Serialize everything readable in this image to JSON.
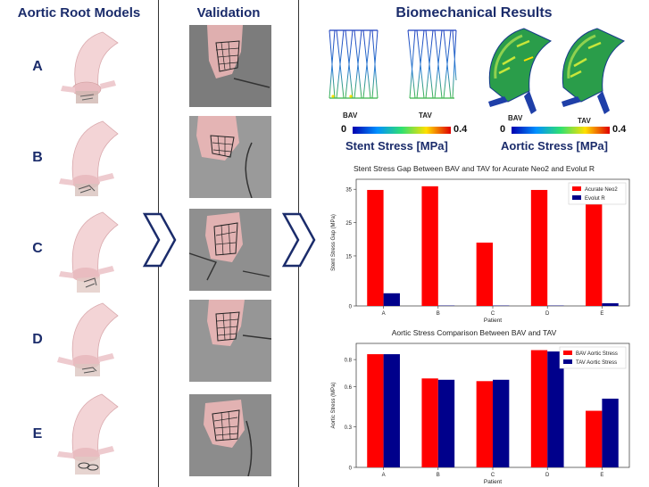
{
  "panels": {
    "models_title": "Aortic Root Models",
    "validation_title": "Validation",
    "results_title": "Biomechanical Results"
  },
  "rows": [
    "A",
    "B",
    "C",
    "D",
    "E"
  ],
  "renders": {
    "stent_bav": "BAV",
    "stent_tav": "TAV",
    "aorta_bav": "BAV",
    "aorta_tav": "TAV"
  },
  "colorbars": {
    "stent": {
      "min": "0",
      "max": "0.4",
      "title": "Stent Stress [MPa]"
    },
    "aortic": {
      "min": "0",
      "max": "0.4",
      "title": "Aortic Stress [MPa]"
    }
  },
  "colors": {
    "title_blue": "#1b2c6b",
    "bar_red": "#ff0000",
    "bar_navy": "#00008b",
    "tissue_pink": "#f4c9c9",
    "chevron": "#1b2c6b"
  },
  "chart_data": [
    {
      "type": "bar",
      "title": "Stent Stress Gap Between BAV and TAV for Acurate Neo2 and Evolut R",
      "xlabel": "Patient",
      "ylabel": "Stent Stress Gap (MPa)",
      "categories": [
        "A",
        "B",
        "C",
        "D",
        "E"
      ],
      "yticks": [
        0,
        15,
        25,
        35
      ],
      "ylim": [
        0,
        38
      ],
      "legend": "top-right",
      "series": [
        {
          "name": "Acurate Neo2",
          "values": [
            34.8,
            35.9,
            19.0,
            34.8,
            34.0
          ]
        },
        {
          "name": "Evolut R",
          "values": [
            3.8,
            0.1,
            0.1,
            0.1,
            0.8
          ]
        }
      ]
    },
    {
      "type": "bar",
      "title": "Aortic Stress Comparison Between BAV and TAV",
      "xlabel": "Patient",
      "ylabel": "Aortic Stress (MPa)",
      "categories": [
        "A",
        "B",
        "C",
        "D",
        "E"
      ],
      "yticks": [
        0,
        0.3,
        0.6,
        0.8
      ],
      "ylim": [
        0,
        0.92
      ],
      "legend": "top-right",
      "series": [
        {
          "name": "BAV Aortic Stress",
          "values": [
            0.84,
            0.66,
            0.64,
            0.87,
            0.42
          ]
        },
        {
          "name": "TAV Aortic Stress",
          "values": [
            0.84,
            0.65,
            0.65,
            0.86,
            0.51
          ]
        }
      ]
    }
  ]
}
